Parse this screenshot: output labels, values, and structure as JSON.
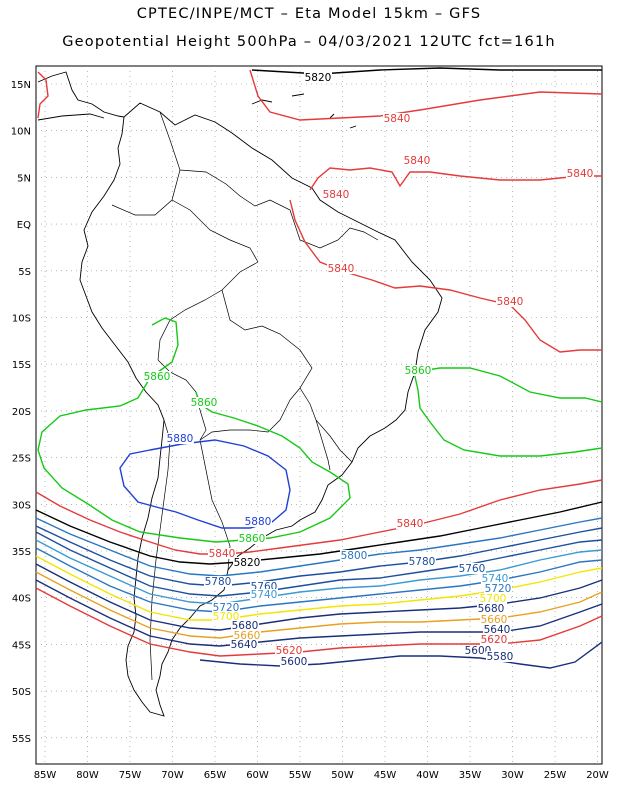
{
  "header": {
    "line1": "CPTEC/INPE/MCT –  Eta Model 15km – GFS",
    "line2": "Geopotential Height 500hPa – 04/03/2021 12UTC fct=161h"
  },
  "axes": {
    "lon_labels": [
      "85W",
      "80W",
      "75W",
      "70W",
      "65W",
      "60W",
      "55W",
      "50W",
      "45W",
      "40W",
      "35W",
      "30W",
      "25W",
      "20W"
    ],
    "lat_labels": [
      "15N",
      "10N",
      "5N",
      "EQ",
      "5S",
      "10S",
      "15S",
      "20S",
      "25S",
      "30S",
      "35S",
      "40S",
      "45S",
      "50S",
      "55S"
    ]
  },
  "contours": {
    "colors": {
      "5580": "#1a2f7a",
      "5600": "#1a2f7a",
      "5620": "#e53a3a",
      "5640": "#1a2f7a",
      "5660": "#e8a020",
      "5680": "#1a2f7a",
      "5700": "#f2e600",
      "5720": "#2a76c2",
      "5740": "#3a9ad2",
      "5760": "#1c4fa0",
      "5780": "#1c4fa0",
      "5800": "#2a76c2",
      "5820": "#000000",
      "5840": "#e53a3a",
      "5860": "#16c916",
      "5880": "#2040d8"
    },
    "labels": [
      {
        "text": "5820",
        "level": "5820"
      },
      {
        "text": "5840",
        "level": "5840"
      },
      {
        "text": "5840",
        "level": "5840"
      },
      {
        "text": "5840",
        "level": "5840"
      },
      {
        "text": "5840",
        "level": "5840"
      },
      {
        "text": "5840",
        "level": "5840"
      },
      {
        "text": "5840",
        "level": "5840"
      },
      {
        "text": "5860",
        "level": "5860"
      },
      {
        "text": "5860",
        "level": "5860"
      },
      {
        "text": "5860",
        "level": "5860"
      },
      {
        "text": "5880",
        "level": "5880"
      },
      {
        "text": "5880",
        "level": "5880"
      },
      {
        "text": "5860",
        "level": "5860"
      },
      {
        "text": "5840",
        "level": "5840"
      },
      {
        "text": "5840",
        "level": "5840"
      },
      {
        "text": "5820",
        "level": "5820"
      },
      {
        "text": "5800",
        "level": "5800"
      },
      {
        "text": "5780",
        "level": "5780"
      },
      {
        "text": "5760",
        "level": "5760"
      },
      {
        "text": "5780",
        "level": "5780"
      },
      {
        "text": "5760",
        "level": "5760"
      },
      {
        "text": "5740",
        "level": "5740"
      },
      {
        "text": "5740",
        "level": "5740"
      },
      {
        "text": "5720",
        "level": "5720"
      },
      {
        "text": "5720",
        "level": "5720"
      },
      {
        "text": "5700",
        "level": "5700"
      },
      {
        "text": "5700",
        "level": "5700"
      },
      {
        "text": "5680",
        "level": "5680"
      },
      {
        "text": "5680",
        "level": "5680"
      },
      {
        "text": "5660",
        "level": "5660"
      },
      {
        "text": "5660",
        "level": "5660"
      },
      {
        "text": "5640",
        "level": "5640"
      },
      {
        "text": "5640",
        "level": "5640"
      },
      {
        "text": "5620",
        "level": "5620"
      },
      {
        "text": "5620",
        "level": "5620"
      },
      {
        "text": "5600",
        "level": "5600"
      },
      {
        "text": "5600",
        "level": "5600"
      },
      {
        "text": "5580",
        "level": "5580"
      }
    ]
  }
}
